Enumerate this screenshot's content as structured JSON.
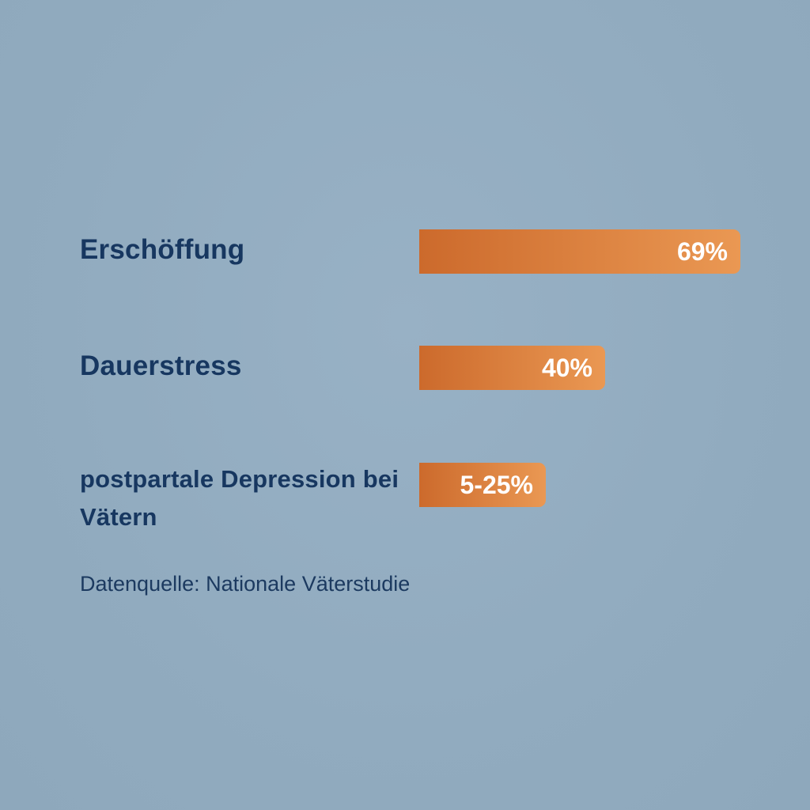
{
  "chart_data": {
    "type": "bar",
    "orientation": "horizontal",
    "categories": [
      "Erschöffung",
      "Dauerstress",
      "postpartale Depression bei Vätern"
    ],
    "values": [
      69,
      40,
      25
    ],
    "value_labels": [
      "69%",
      "40%",
      "5-25%"
    ],
    "ranges": [
      null,
      null,
      [
        5,
        25
      ]
    ],
    "unit": "%",
    "xlim": [
      0,
      100
    ],
    "grid": false,
    "source": "Datenquelle: Nationale Väterstudie"
  },
  "colors": {
    "background": "#93adc1",
    "text": "#173760",
    "bar_start": "#cc6a2c",
    "bar_end": "#ea9853",
    "value_text": "#ffffff"
  }
}
